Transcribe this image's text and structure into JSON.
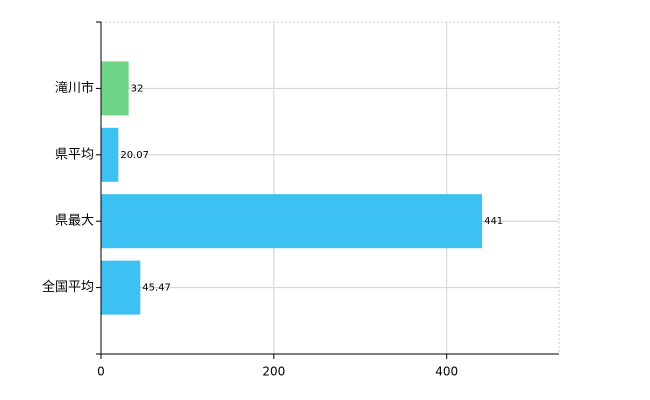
{
  "chart_data": {
    "type": "barh",
    "categories": [
      "滝川市",
      "県平均",
      "県最大",
      "全国平均"
    ],
    "values": [
      32,
      20.07,
      441,
      45.47
    ],
    "colors": [
      "#70d487",
      "#3cc1f2",
      "#3cc1f2",
      "#3cc1f2"
    ],
    "xlim": [
      0,
      530
    ],
    "xticks": [
      0,
      200,
      400
    ],
    "grid": true
  }
}
